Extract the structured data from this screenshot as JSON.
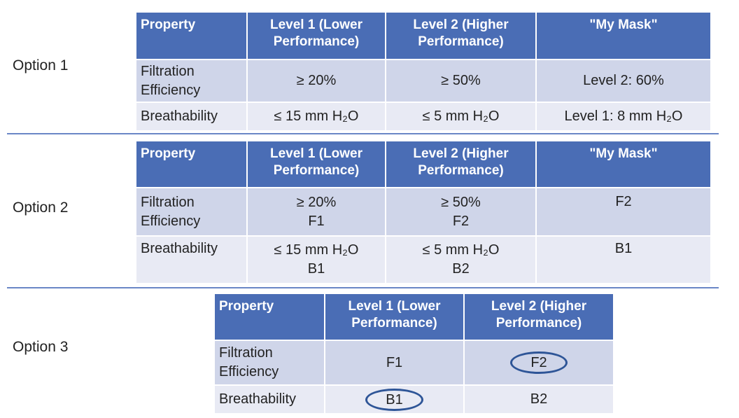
{
  "headers_full": [
    "Property",
    "Level 1 (Lower Performance)",
    "Level 2 (Higher Performance)",
    "\"My Mask\""
  ],
  "option1": {
    "label": "Option 1",
    "rows": [
      [
        "Filtration Efficiency",
        "≥ 20%",
        "≥ 50%",
        "Level 2: 60%"
      ],
      [
        "Breathability",
        "≤ 15 mm H₂O",
        "≤ 5 mm H₂O",
        "Level 1: 8 mm H₂O"
      ]
    ]
  },
  "option2": {
    "label": "Option 2",
    "rows": [
      [
        "Filtration Efficiency",
        "≥ 20%",
        "F1",
        "≥ 50%",
        "F2",
        "F2"
      ],
      [
        "Breathability",
        "≤ 15 mm H₂O",
        "B1",
        "≤ 5 mm H₂O",
        "B2",
        "B1"
      ]
    ]
  },
  "option3": {
    "label": "Option 3",
    "rows": [
      [
        "Filtration Efficiency",
        "F1",
        "F2"
      ],
      [
        "Breathability",
        "B1",
        "B2"
      ]
    ],
    "circled": [
      "F2",
      "B1"
    ],
    "circle_color": "#2e5597"
  },
  "colors": {
    "header": "#4a6db5",
    "row_dark": "#cfd5e9",
    "row_light": "#e8eaf4",
    "divider": "#6a87c6"
  }
}
